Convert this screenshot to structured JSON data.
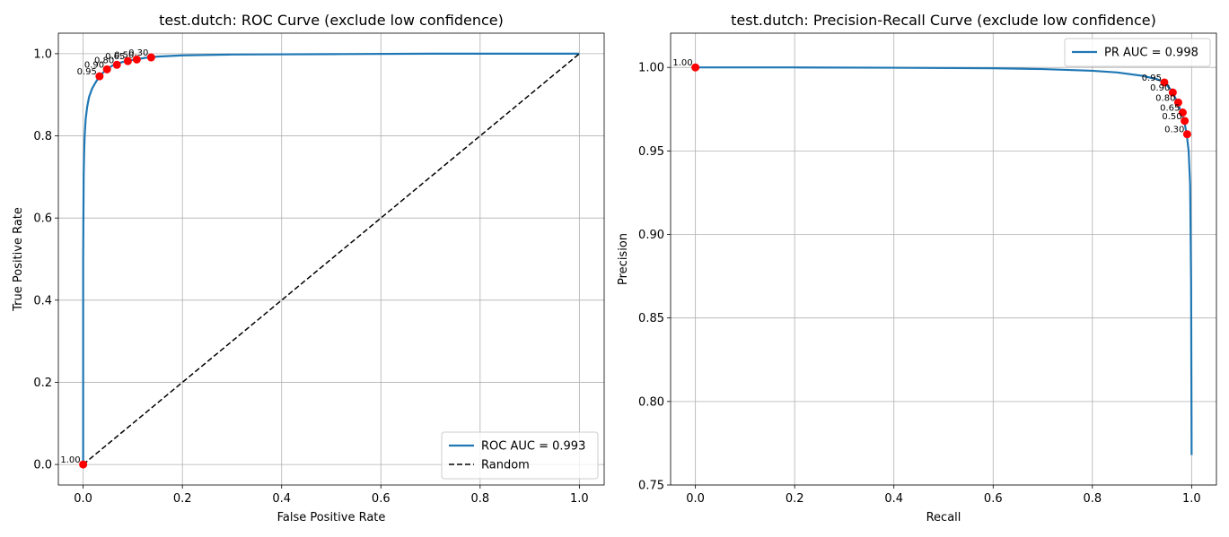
{
  "chart_data": [
    {
      "type": "line",
      "title": "test.dutch: ROC Curve (exclude low confidence)",
      "xlabel": "False Positive Rate",
      "ylabel": "True Positive Rate",
      "xlim": [
        -0.05,
        1.05
      ],
      "ylim": [
        -0.05,
        1.05
      ],
      "xticks": [
        0.0,
        0.2,
        0.4,
        0.6,
        0.8,
        1.0
      ],
      "yticks": [
        0.0,
        0.2,
        0.4,
        0.6,
        0.8,
        1.0
      ],
      "tick_labels_x": [
        "0.0",
        "0.2",
        "0.4",
        "0.6",
        "0.8",
        "1.0"
      ],
      "tick_labels_y": [
        "0.0",
        "0.2",
        "0.4",
        "0.6",
        "0.8",
        "1.0"
      ],
      "grid": true,
      "legend_position": "lower-right",
      "series": [
        {
          "name": "ROC AUC = 0.993",
          "color": "#1f77b4",
          "style": "solid",
          "x": [
            0.0,
            0.0,
            0.001,
            0.002,
            0.003,
            0.005,
            0.008,
            0.012,
            0.018,
            0.025,
            0.033,
            0.045,
            0.06,
            0.08,
            0.1,
            0.125,
            0.15,
            0.2,
            0.3,
            0.5,
            0.7,
            1.0
          ],
          "y": [
            0.0,
            0.5,
            0.7,
            0.76,
            0.8,
            0.84,
            0.87,
            0.895,
            0.915,
            0.93,
            0.945,
            0.96,
            0.972,
            0.98,
            0.985,
            0.99,
            0.993,
            0.996,
            0.998,
            0.999,
            1.0,
            1.0
          ]
        },
        {
          "name": "Random",
          "color": "#000000",
          "style": "dashed",
          "x": [
            0.0,
            1.0
          ],
          "y": [
            0.0,
            1.0
          ]
        }
      ],
      "markers": [
        {
          "label": "1.00",
          "x": 0.0,
          "y": 0.0
        },
        {
          "label": "0.95",
          "x": 0.033,
          "y": 0.945
        },
        {
          "label": "0.90",
          "x": 0.048,
          "y": 0.962
        },
        {
          "label": "0.80",
          "x": 0.068,
          "y": 0.973
        },
        {
          "label": "0.65",
          "x": 0.09,
          "y": 0.982
        },
        {
          "label": "0.50",
          "x": 0.108,
          "y": 0.986
        },
        {
          "label": "0.30",
          "x": 0.137,
          "y": 0.991
        }
      ],
      "marker_color": "#ff0000"
    },
    {
      "type": "line",
      "title": "test.dutch: Precision-Recall Curve (exclude low confidence)",
      "xlabel": "Recall",
      "ylabel": "Precision",
      "xlim": [
        -0.05,
        1.05
      ],
      "ylim": [
        0.75,
        1.0205
      ],
      "xticks": [
        0.0,
        0.2,
        0.4,
        0.6,
        0.8,
        1.0
      ],
      "yticks": [
        0.75,
        0.8,
        0.85,
        0.9,
        0.95,
        1.0
      ],
      "tick_labels_x": [
        "0.0",
        "0.2",
        "0.4",
        "0.6",
        "0.8",
        "1.0"
      ],
      "tick_labels_y": [
        "0.75",
        "0.80",
        "0.85",
        "0.90",
        "0.95",
        "1.00"
      ],
      "grid": true,
      "legend_position": "upper-right",
      "series": [
        {
          "name": "PR AUC = 0.998",
          "color": "#1f77b4",
          "style": "solid",
          "x": [
            0.0,
            0.2,
            0.4,
            0.6,
            0.7,
            0.8,
            0.85,
            0.9,
            0.93,
            0.945,
            0.96,
            0.97,
            0.978,
            0.985,
            0.99,
            0.994,
            0.997,
            0.999,
            1.0
          ],
          "y": [
            1.0,
            1.0,
            0.9998,
            0.9995,
            0.999,
            0.998,
            0.997,
            0.995,
            0.993,
            0.991,
            0.986,
            0.98,
            0.974,
            0.968,
            0.96,
            0.95,
            0.93,
            0.87,
            0.768
          ]
        }
      ],
      "markers": [
        {
          "label": "1.00",
          "x": 0.0,
          "y": 1.0
        },
        {
          "label": "0.95",
          "x": 0.945,
          "y": 0.991
        },
        {
          "label": "0.90",
          "x": 0.962,
          "y": 0.985
        },
        {
          "label": "0.80",
          "x": 0.973,
          "y": 0.979
        },
        {
          "label": "0.65",
          "x": 0.982,
          "y": 0.973
        },
        {
          "label": "0.50",
          "x": 0.986,
          "y": 0.968
        },
        {
          "label": "0.30",
          "x": 0.991,
          "y": 0.96
        }
      ],
      "marker_color": "#ff0000"
    }
  ]
}
